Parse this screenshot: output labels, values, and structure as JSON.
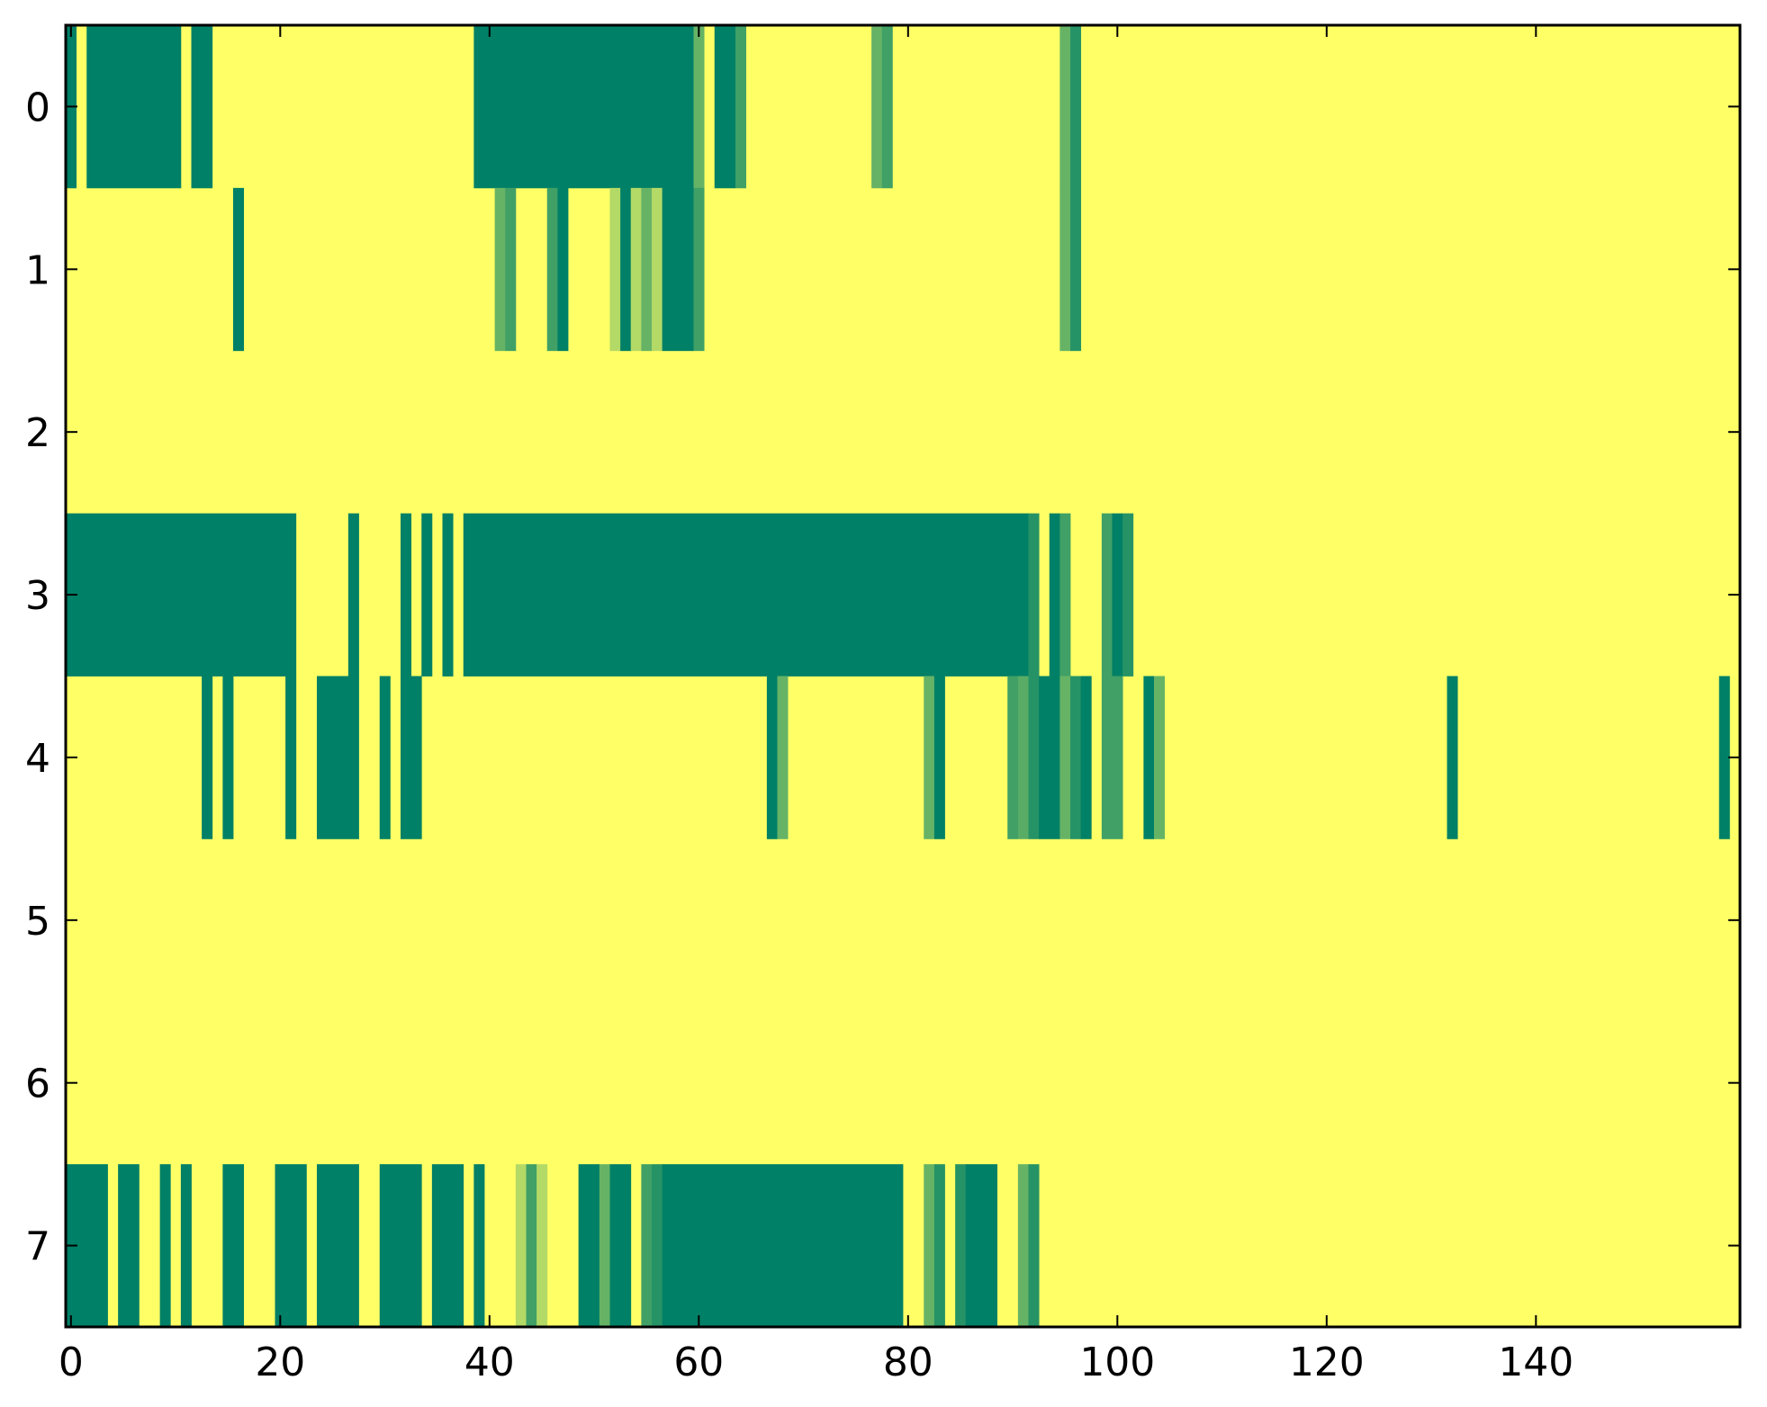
{
  "chart_data": {
    "type": "heatmap",
    "title": "",
    "xlabel": "",
    "ylabel": "",
    "x_range": [
      -0.5,
      159.5
    ],
    "y_range": [
      -0.5,
      7.5
    ],
    "grid": false,
    "colormap": "summer_r",
    "colors": {
      "low": "#ffff66",
      "high": "#008066",
      "frame": "#000000"
    },
    "x_ticks": [
      {
        "value": 0,
        "label": "0"
      },
      {
        "value": 20,
        "label": "20"
      },
      {
        "value": 40,
        "label": "40"
      },
      {
        "value": 60,
        "label": "60"
      },
      {
        "value": 80,
        "label": "80"
      },
      {
        "value": 100,
        "label": "100"
      },
      {
        "value": 120,
        "label": "120"
      },
      {
        "value": 140,
        "label": "140"
      }
    ],
    "y_ticks": [
      {
        "value": 0,
        "label": "0"
      },
      {
        "value": 1,
        "label": "1"
      },
      {
        "value": 2,
        "label": "2"
      },
      {
        "value": 3,
        "label": "3"
      },
      {
        "value": 4,
        "label": "4"
      },
      {
        "value": 5,
        "label": "5"
      },
      {
        "value": 6,
        "label": "6"
      },
      {
        "value": 7,
        "label": "7"
      }
    ],
    "n_columns": 160,
    "rows": [
      {
        "row": 0,
        "runs": [
          [
            0,
            0,
            1.0
          ],
          [
            2,
            10,
            1.0
          ],
          [
            12,
            13,
            1.0
          ],
          [
            39,
            59,
            1.0
          ],
          [
            60,
            60,
            0.6
          ],
          [
            62,
            63,
            1.0
          ],
          [
            64,
            64,
            0.75
          ],
          [
            77,
            77,
            0.6
          ],
          [
            78,
            78,
            0.75
          ],
          [
            95,
            95,
            0.6
          ],
          [
            96,
            96,
            0.85
          ]
        ]
      },
      {
        "row": 1,
        "runs": [
          [
            16,
            16,
            1.0
          ],
          [
            41,
            41,
            0.6
          ],
          [
            42,
            42,
            0.75
          ],
          [
            46,
            46,
            0.75
          ],
          [
            47,
            47,
            1.0
          ],
          [
            52,
            52,
            0.3
          ],
          [
            53,
            53,
            1.0
          ],
          [
            54,
            54,
            0.3
          ],
          [
            55,
            55,
            0.6
          ],
          [
            56,
            56,
            0.3
          ],
          [
            57,
            59,
            1.0
          ],
          [
            60,
            60,
            0.75
          ],
          [
            95,
            95,
            0.6
          ],
          [
            96,
            96,
            0.85
          ]
        ]
      },
      {
        "row": 2,
        "runs": []
      },
      {
        "row": 3,
        "runs": [
          [
            0,
            21,
            1.0
          ],
          [
            27,
            27,
            1.0
          ],
          [
            32,
            32,
            1.0
          ],
          [
            34,
            34,
            1.0
          ],
          [
            36,
            36,
            1.0
          ],
          [
            38,
            91,
            1.0
          ],
          [
            92,
            92,
            0.85
          ],
          [
            94,
            94,
            1.0
          ],
          [
            95,
            95,
            0.75
          ],
          [
            99,
            99,
            0.75
          ],
          [
            100,
            100,
            1.0
          ],
          [
            101,
            101,
            0.85
          ]
        ]
      },
      {
        "row": 4,
        "runs": [
          [
            13,
            13,
            1.0
          ],
          [
            15,
            15,
            1.0
          ],
          [
            21,
            21,
            1.0
          ],
          [
            24,
            27,
            1.0
          ],
          [
            30,
            30,
            1.0
          ],
          [
            32,
            33,
            1.0
          ],
          [
            67,
            67,
            1.0
          ],
          [
            68,
            68,
            0.6
          ],
          [
            82,
            82,
            0.6
          ],
          [
            83,
            83,
            1.0
          ],
          [
            90,
            90,
            0.75
          ],
          [
            91,
            91,
            0.65
          ],
          [
            92,
            92,
            0.85
          ],
          [
            93,
            94,
            1.0
          ],
          [
            95,
            95,
            0.6
          ],
          [
            96,
            96,
            0.85
          ],
          [
            97,
            97,
            1.0
          ],
          [
            99,
            100,
            0.75
          ],
          [
            103,
            103,
            1.0
          ],
          [
            104,
            104,
            0.6
          ],
          [
            132,
            132,
            1.0
          ],
          [
            158,
            158,
            1.0
          ]
        ]
      },
      {
        "row": 5,
        "runs": []
      },
      {
        "row": 6,
        "runs": []
      },
      {
        "row": 7,
        "runs": [
          [
            0,
            3,
            1.0
          ],
          [
            5,
            6,
            1.0
          ],
          [
            9,
            9,
            1.0
          ],
          [
            11,
            11,
            1.0
          ],
          [
            15,
            16,
            1.0
          ],
          [
            20,
            22,
            1.0
          ],
          [
            24,
            27,
            1.0
          ],
          [
            30,
            33,
            1.0
          ],
          [
            35,
            37,
            1.0
          ],
          [
            39,
            39,
            1.0
          ],
          [
            43,
            43,
            0.3
          ],
          [
            44,
            44,
            0.75
          ],
          [
            45,
            45,
            0.3
          ],
          [
            49,
            50,
            1.0
          ],
          [
            51,
            51,
            0.6
          ],
          [
            52,
            53,
            1.0
          ],
          [
            55,
            55,
            0.75
          ],
          [
            56,
            56,
            0.85
          ],
          [
            57,
            79,
            1.0
          ],
          [
            82,
            82,
            0.6
          ],
          [
            83,
            83,
            0.85
          ],
          [
            85,
            85,
            0.85
          ],
          [
            86,
            88,
            1.0
          ],
          [
            91,
            91,
            0.6
          ],
          [
            92,
            92,
            0.85
          ]
        ]
      }
    ]
  }
}
